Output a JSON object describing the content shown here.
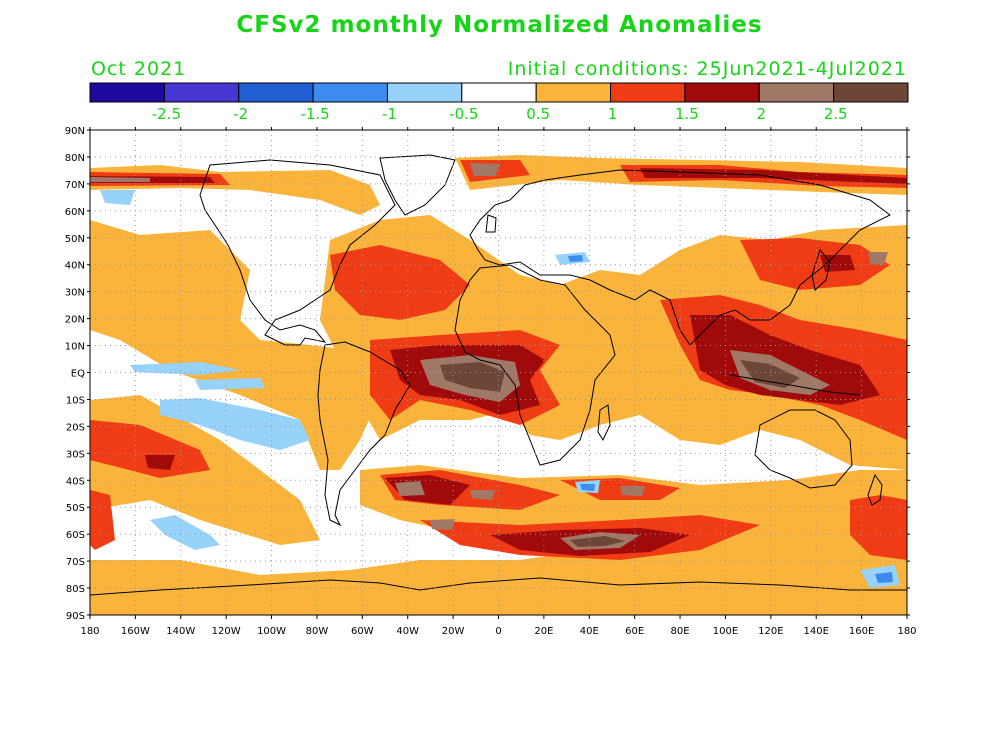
{
  "header": {
    "title": "CFSv2 monthly Normalized Anomalies",
    "month": "Oct 2021",
    "initial_conditions": "Initial conditions: 25Jun2021-4Jul2021"
  },
  "colors": {
    "title": "#18d418",
    "axis": "#000000",
    "coast": "#000000",
    "grid": "#9a9a9a",
    "background": "#ffffff"
  },
  "colorbar": {
    "bins": [
      {
        "color": "#1f0aa0"
      },
      {
        "color": "#4636d2"
      },
      {
        "color": "#1f5fd2"
      },
      {
        "color": "#3c8cf0"
      },
      {
        "color": "#96d2fa"
      },
      {
        "color": "#ffffff"
      },
      {
        "color": "#fab43c"
      },
      {
        "color": "#f03c14"
      },
      {
        "color": "#a00a0a"
      },
      {
        "color": "#a07868"
      },
      {
        "color": "#6e4637"
      }
    ],
    "labels": [
      "-2.5",
      "-2",
      "-1.5",
      "-1",
      "-0.5",
      "0.5",
      "1",
      "1.5",
      "2",
      "2.5"
    ]
  },
  "map": {
    "lat_labels": [
      "90N",
      "80N",
      "70N",
      "60N",
      "50N",
      "40N",
      "30N",
      "20N",
      "10N",
      "EQ",
      "10S",
      "20S",
      "30S",
      "40S",
      "50S",
      "60S",
      "70S",
      "80S",
      "90S"
    ],
    "lon_labels": [
      "180",
      "160W",
      "140W",
      "120W",
      "100W",
      "80W",
      "60W",
      "40W",
      "20W",
      "0",
      "20E",
      "40E",
      "60E",
      "80E",
      "100E",
      "120E",
      "140E",
      "160E",
      "180"
    ],
    "projection": "cylindrical equidistant",
    "lon_range": [
      -180,
      180
    ],
    "lat_range": [
      -90,
      90
    ],
    "gridlines": "dotted every 10 degrees"
  }
}
